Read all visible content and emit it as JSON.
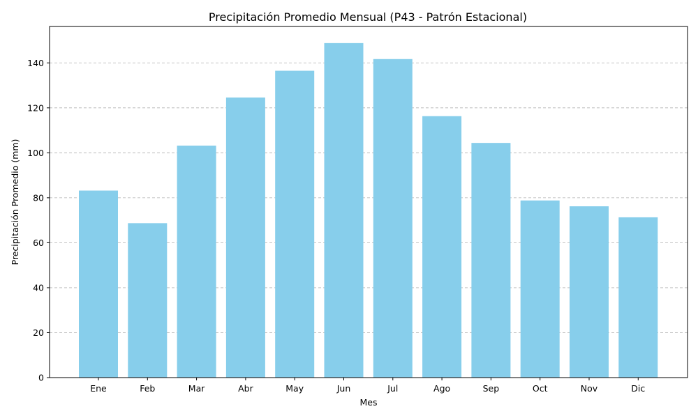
{
  "chart_data": {
    "type": "bar",
    "title": "Precipitación Promedio Mensual (P43 - Patrón Estacional)",
    "xlabel": "Mes",
    "ylabel": "Precipitación Promedio (mm)",
    "categories": [
      "Ene",
      "Feb",
      "Mar",
      "Abr",
      "May",
      "Jun",
      "Jul",
      "Ago",
      "Sep",
      "Oct",
      "Nov",
      "Dic"
    ],
    "values": [
      83.2,
      68.7,
      103.2,
      124.6,
      136.5,
      148.8,
      141.7,
      116.3,
      104.4,
      78.8,
      76.2,
      71.3
    ],
    "ylim": [
      0,
      156.2
    ],
    "yticks": [
      0,
      20,
      40,
      60,
      80,
      100,
      120,
      140
    ],
    "grid": "y-axis dashed",
    "bar_color": "#87ceeb",
    "legend": "none"
  }
}
